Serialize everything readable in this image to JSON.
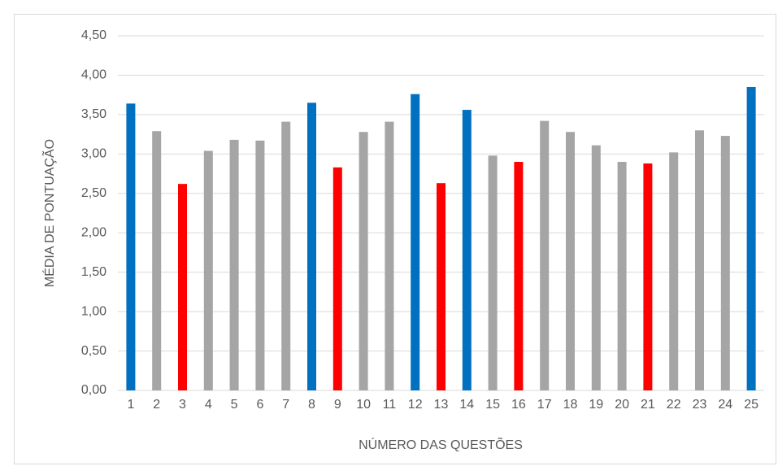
{
  "chart_data": {
    "type": "bar",
    "x_label": "NÚMERO DAS QUESTÕES",
    "y_label": "MÉDIA DE PONTUAÇÃO",
    "categories": [
      "1",
      "2",
      "3",
      "4",
      "5",
      "6",
      "7",
      "8",
      "9",
      "10",
      "11",
      "12",
      "13",
      "14",
      "15",
      "16",
      "17",
      "18",
      "19",
      "20",
      "21",
      "22",
      "23",
      "24",
      "25"
    ],
    "values": [
      3.64,
      3.29,
      2.62,
      3.04,
      3.18,
      3.17,
      3.41,
      3.65,
      2.83,
      3.28,
      3.41,
      3.76,
      2.63,
      3.56,
      2.98,
      2.9,
      3.42,
      3.28,
      3.11,
      2.9,
      2.88,
      3.02,
      3.3,
      3.23,
      3.85
    ],
    "colors": [
      "#0070c0",
      "#a5a5a5",
      "#ff0000",
      "#a5a5a5",
      "#a5a5a5",
      "#a5a5a5",
      "#a5a5a5",
      "#0070c0",
      "#ff0000",
      "#a5a5a5",
      "#a5a5a5",
      "#0070c0",
      "#ff0000",
      "#0070c0",
      "#a5a5a5",
      "#ff0000",
      "#a5a5a5",
      "#a5a5a5",
      "#a5a5a5",
      "#a5a5a5",
      "#ff0000",
      "#a5a5a5",
      "#a5a5a5",
      "#a5a5a5",
      "#0070c0"
    ],
    "ylim": [
      0,
      4.5
    ],
    "yticks": [
      {
        "value": 0,
        "label": "0,00"
      },
      {
        "value": 0.5,
        "label": "0,50"
      },
      {
        "value": 1,
        "label": "1,00"
      },
      {
        "value": 1.5,
        "label": "1,50"
      },
      {
        "value": 2,
        "label": "2,00"
      },
      {
        "value": 2.5,
        "label": "2,50"
      },
      {
        "value": 3,
        "label": "3,00"
      },
      {
        "value": 3.5,
        "label": "3,50"
      },
      {
        "value": 4,
        "label": "4,00"
      },
      {
        "value": 4.5,
        "label": "4,50"
      }
    ],
    "grid": true
  }
}
